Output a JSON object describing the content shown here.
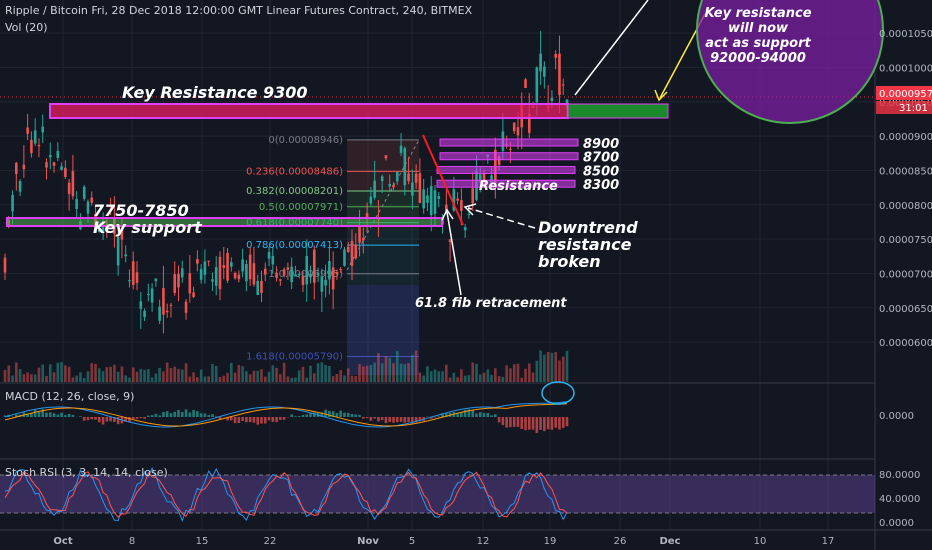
{
  "chart_data": {
    "type": "candlestick",
    "header": {
      "symbol_line": "Ripple / Bitcoin Fri, 28 Dec 2018 12:00:00 GMT Linear Futures Contract, 240, BITMEX",
      "volume_label": "Vol (20)"
    },
    "price_axis": {
      "ticks": [
        "0.00010500",
        "0.00010000",
        "0.00009500",
        "0.00009000",
        "0.00008500",
        "0.00008000",
        "0.00007500",
        "0.00007000",
        "0.00006500",
        "0.00006000"
      ],
      "ylim": [
        5.55e-05,
        0.0001075
      ],
      "current_price": "0.00009570",
      "countdown": "31:01",
      "current_value": 9.57e-05
    },
    "time_axis": {
      "labels": [
        "Oct",
        "8",
        "15",
        "22",
        "Nov",
        "5",
        "12",
        "19",
        "26",
        "Dec",
        "10",
        "17"
      ]
    },
    "candles": [
      [
        7.2e-05,
        7.9e-05
      ],
      [
        7.9e-05,
        8.8e-05
      ],
      [
        8.8e-05,
        9.6e-05
      ],
      [
        8.7e-05,
        9.2e-05
      ],
      [
        8.8e-05,
        8.5e-05
      ],
      [
        8.5e-05,
        8.2e-05
      ],
      [
        8.2e-05,
        7.8e-05
      ],
      [
        7.8e-05,
        8e-05
      ],
      [
        8e-05,
        7.6e-05
      ],
      [
        7.6e-05,
        7.2e-05
      ],
      [
        7.2e-05,
        6.9e-05
      ],
      [
        6.9e-05,
        6.4e-05
      ],
      [
        6.4e-05,
        6.8e-05
      ],
      [
        6.8e-05,
        6.6e-05
      ],
      [
        6.6e-05,
        7e-05
      ],
      [
        7e-05,
        6.9e-05
      ],
      [
        6.9e-05,
        7.2e-05
      ],
      [
        7.2e-05,
        7.05e-05
      ],
      [
        7.05e-05,
        7.15e-05
      ],
      [
        7.15e-05,
        7e-05
      ],
      [
        7e-05,
        6.9e-05
      ],
      [
        6.9e-05,
        7e-05
      ],
      [
        7e-05,
        6.95e-05
      ],
      [
        6.95e-05,
        7.05e-05
      ],
      [
        7.05e-05,
        7e-05
      ],
      [
        7e-05,
        7.1e-05
      ],
      [
        7.1e-05,
        7.05e-05
      ],
      [
        7.05e-05,
        7.4e-05
      ],
      [
        7.4e-05,
        7.8e-05
      ],
      [
        7.8e-05,
        8.3e-05
      ],
      [
        8.3e-05,
        8.8e-05
      ],
      [
        8.8e-05,
        8.5e-05
      ],
      [
        8.5e-05,
        8.1e-05
      ],
      [
        8.1e-05,
        7.9e-05
      ],
      [
        7.9e-05,
        8e-05
      ],
      [
        8e-05,
        7.7e-05
      ],
      [
        7.7e-05,
        8.1e-05
      ],
      [
        8.1e-05,
        8.4e-05
      ],
      [
        8.4e-05,
        8.6e-05
      ],
      [
        8.6e-05,
        8.8e-05
      ],
      [
        8.8e-05,
        9.2e-05
      ],
      [
        9.2e-05,
        9.9e-05
      ],
      [
        9.9e-05,
        0.000101
      ],
      [
        0.000101,
        9.6e-05
      ],
      [
        9.6e-05,
        9.57e-05
      ]
    ],
    "macd": {
      "label": "MACD (12, 26, close, 9)",
      "tick": "0.0000"
    },
    "stoch_rsi": {
      "label": "Stoch RSI (3, 3, 14, 14, close)",
      "ticks": [
        "80.0000",
        "40.0000",
        "0.0000"
      ]
    },
    "fibonacci": [
      {
        "label": "0(0.00008946)",
        "value": 8.946e-05
      },
      {
        "label": "0.236(0.00008486)",
        "value": 8.486e-05
      },
      {
        "label": "0.382(0.00008201)",
        "value": 8.201e-05
      },
      {
        "label": "0.5(0.00007971)",
        "value": 7.971e-05
      },
      {
        "label": "0.618(0.00007740)",
        "value": 7.74e-05
      },
      {
        "label": "0.786(0.00007413)",
        "value": 7.413e-05
      },
      {
        "label": "1(0.00006995)",
        "value": 6.995e-05
      },
      {
        "label": "1.618(0.00005790)",
        "value": 5.79e-05
      }
    ],
    "levels": [
      {
        "label": "8900",
        "value": 8.9e-05
      },
      {
        "label": "8700",
        "value": 8.7e-05
      },
      {
        "label": "8500",
        "value": 8.5e-05
      },
      {
        "label": "8300",
        "value": 8.3e-05
      }
    ],
    "annotations": {
      "key_resistance": "Key Resistance 9300",
      "key_support_range": "7750-7850",
      "key_support": "Key support",
      "resistance": "Resistance",
      "downtrend_1": "Downtrend",
      "downtrend_2": "resistance",
      "downtrend_3": "broken",
      "fib_note": "61.8 fib retracement",
      "circle_1": "Key resistance",
      "circle_2": "will now",
      "circle_3": "act as support",
      "circle_4": "92000-94000"
    },
    "colors": {
      "background": "#131722",
      "up": "#26a69a",
      "down": "#ef5350",
      "resistance_zone": "#e91e63",
      "support_zone": "#4caf50",
      "level_box": "#e040fb",
      "circle_fill": "#7b1fa2",
      "circle_stroke": "#4caf50",
      "trendline": "#ff1a1a",
      "yellow_arrow": "#ffeb3b",
      "price_tag": "#f23645"
    }
  }
}
